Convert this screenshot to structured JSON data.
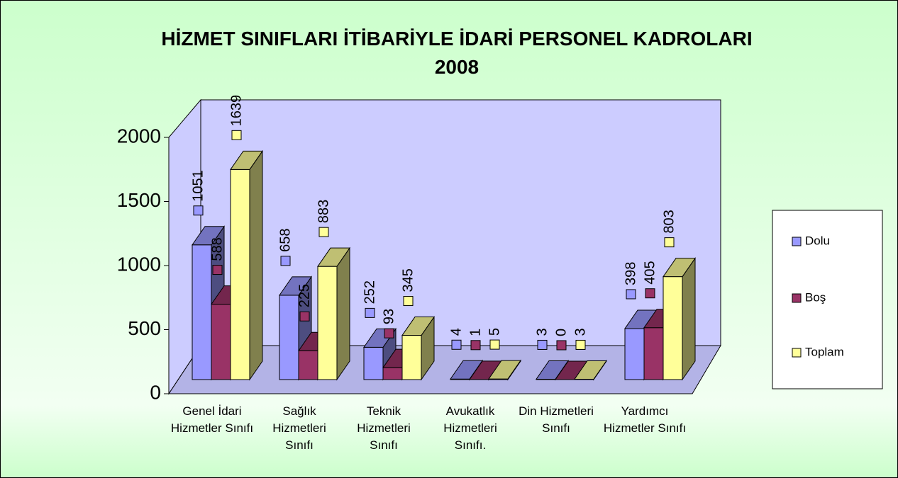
{
  "chart_data": {
    "type": "bar3d",
    "title": "HİZMET SINIFLARI İTİBARİYLE İDARİ PERSONEL KADROLARI 2008",
    "categories": [
      "Genel İdari Hizmetler Sınıfı",
      "Sağlık Hizmetleri Sınıfı",
      "Teknik Hizmetleri Sınıfı",
      "Avukatlık Hizmetleri Sınıfı.",
      "Din Hizmetleri Sınıfı",
      "Yardımcı Hizmetler Sınıfı"
    ],
    "series": [
      {
        "name": "Dolu",
        "color": "#9999ff",
        "values": [
          1051,
          658,
          252,
          4,
          3,
          398
        ]
      },
      {
        "name": "Boş",
        "color": "#993366",
        "values": [
          588,
          225,
          93,
          1,
          0,
          405
        ]
      },
      {
        "name": "Toplam",
        "color": "#ffff99",
        "values": [
          1639,
          883,
          345,
          5,
          3,
          803
        ]
      }
    ],
    "ylim": [
      0,
      2000
    ],
    "yticks": [
      0,
      500,
      1000,
      1500,
      2000
    ],
    "legend": "right",
    "data_labels": true
  }
}
